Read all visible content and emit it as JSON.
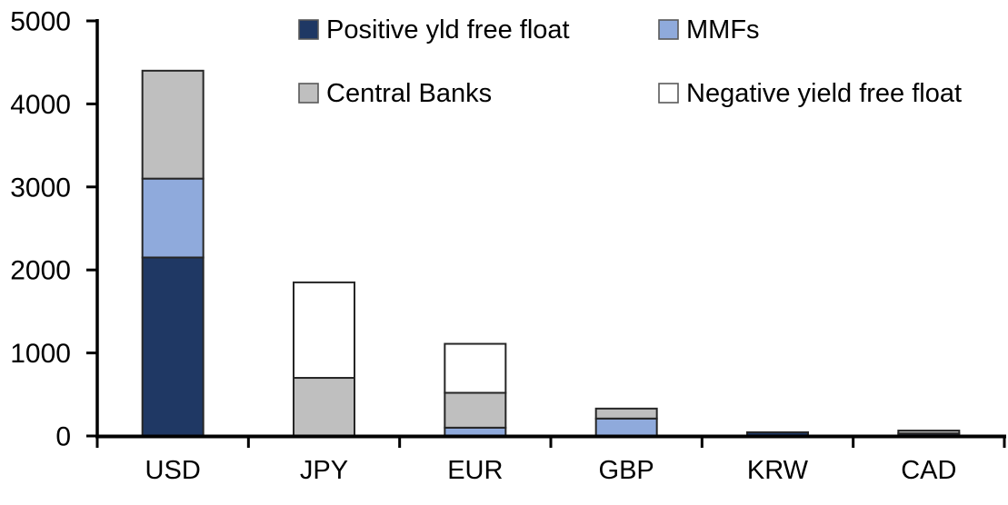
{
  "chart_data": {
    "type": "bar",
    "stacked": true,
    "title": "",
    "xlabel": "",
    "ylabel": "",
    "categories": [
      "USD",
      "JPY",
      "EUR",
      "GBP",
      "KRW",
      "CAD"
    ],
    "series": [
      {
        "name": "Positive yld free float",
        "color": "#1F3864",
        "values": [
          2150,
          0,
          0,
          0,
          45,
          30
        ]
      },
      {
        "name": "MMFs",
        "color": "#8FAADC",
        "values": [
          950,
          0,
          100,
          210,
          0,
          0
        ]
      },
      {
        "name": "Central Banks",
        "color": "#BFBFBF",
        "values": [
          1300,
          700,
          420,
          120,
          0,
          35
        ]
      },
      {
        "name": "Negative yield free float",
        "color": "#FFFFFF",
        "values": [
          0,
          1150,
          590,
          0,
          0,
          0
        ]
      }
    ],
    "totals": [
      4400,
      1850,
      1110,
      330,
      45,
      65
    ],
    "ylim": [
      0,
      5000
    ],
    "ytick_interval": 1000,
    "yticks": [
      0,
      1000,
      2000,
      3000,
      4000,
      5000
    ],
    "ytick_labels": [
      "0",
      "1000",
      "2000",
      "3000",
      "4000",
      "5000"
    ],
    "grid": false,
    "legend_position": "top-two-column",
    "legend_order": [
      [
        "Positive yld free float",
        "MMFs"
      ],
      [
        "Central Banks",
        "Negative yield free float"
      ]
    ],
    "axis_color": "#000000",
    "text_color": "#000000",
    "bar_border_color": "#262626",
    "background_color": "#FFFFFF"
  }
}
